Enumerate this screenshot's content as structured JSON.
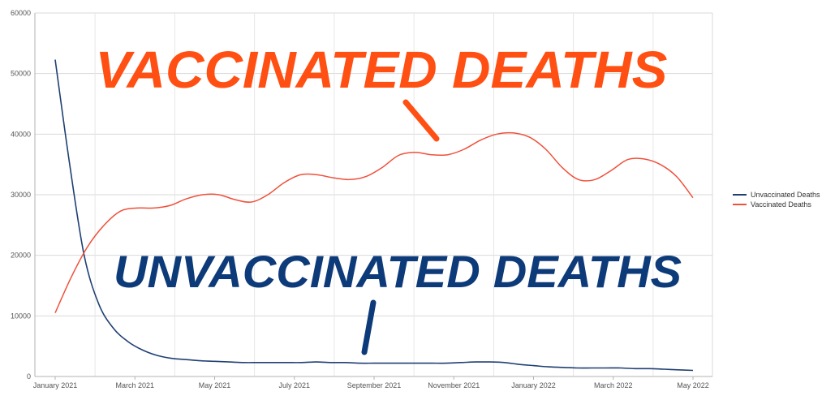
{
  "chart_data": {
    "type": "line",
    "title": "",
    "xlabel": "",
    "ylabel": "",
    "ylim": [
      0,
      60000
    ],
    "yticks": [
      0,
      10000,
      20000,
      30000,
      40000,
      50000,
      60000
    ],
    "x_tick_labels": [
      "January 2021",
      "March 2021",
      "May 2021",
      "July 2021",
      "September 2021",
      "November 2021",
      "January 2022",
      "March 2022",
      "May 2022"
    ],
    "grid": "horizontal",
    "legend_position": "right",
    "series": [
      {
        "name": "Unvaccinated Deaths",
        "color": "#1f3f73",
        "values": [
          52300,
          35000,
          20000,
          12000,
          8000,
          5800,
          4400,
          3500,
          3000,
          2800,
          2600,
          2500,
          2400,
          2300,
          2300,
          2300,
          2300,
          2300,
          2400,
          2300,
          2300,
          2200,
          2200,
          2200,
          2200,
          2200,
          2200,
          2200,
          2300,
          2400,
          2400,
          2300,
          2000,
          1800,
          1600,
          1500,
          1400,
          1400,
          1400,
          1400,
          1300,
          1300,
          1200,
          1100,
          1000
        ]
      },
      {
        "name": "Vaccinated Deaths",
        "color": "#f0503a",
        "values": [
          10500,
          16500,
          21500,
          25000,
          27300,
          27800,
          27800,
          28200,
          29300,
          30000,
          30000,
          29200,
          28800,
          30000,
          32000,
          33300,
          33300,
          32800,
          32500,
          33000,
          34500,
          36500,
          37000,
          36600,
          36600,
          37500,
          39000,
          40000,
          40200,
          39500,
          37500,
          34500,
          32500,
          32500,
          34000,
          35800,
          35900,
          35000,
          33000,
          29500
        ]
      }
    ],
    "annotations": [
      {
        "text": "VACCINATED DEATHS",
        "color": "#ff4f12"
      },
      {
        "text": "UNVACCINATED DEATHS",
        "color": "#0d3a78"
      }
    ]
  }
}
